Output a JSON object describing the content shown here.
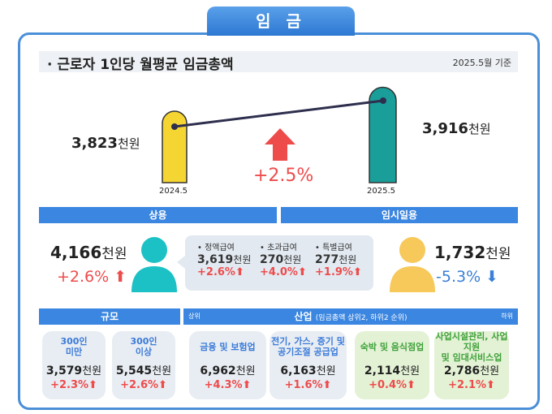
{
  "title": "임 금",
  "header": {
    "title": "· 근로자 1인당 월평균 임금총액",
    "date": "2025.5월 기준"
  },
  "comparison": {
    "prev": {
      "value": "3,823",
      "unit": "천원",
      "label": "2024.5"
    },
    "curr": {
      "value": "3,916",
      "unit": "천원",
      "label": "2025.5"
    },
    "change": "+2.5%"
  },
  "regular": {
    "label": "상용",
    "value": "4,166",
    "unit": "천원",
    "change": "+2.6%",
    "breakdown": [
      {
        "label": "• 정액급여",
        "value": "3,619",
        "unit": "천원",
        "change": "+2.6%"
      },
      {
        "label": "• 초과급여",
        "value": "270",
        "unit": "천원",
        "change": "+4.0%"
      },
      {
        "label": "• 특별급여",
        "value": "277",
        "unit": "천원",
        "change": "+1.9%"
      }
    ]
  },
  "temporary": {
    "label": "임시일용",
    "value": "1,732",
    "unit": "천원",
    "change": "-5.3%"
  },
  "size": {
    "label": "규모",
    "items": [
      {
        "name": "300인\n미만",
        "value": "3,579",
        "unit": "천원",
        "change": "+2.3%"
      },
      {
        "name": "300인\n이상",
        "value": "5,545",
        "unit": "천원",
        "change": "+2.6%"
      }
    ]
  },
  "industry": {
    "label": "산업",
    "note": "(임금총액 상위2, 하위2 순위)",
    "top": "상위",
    "bottom": "하위",
    "items": [
      {
        "name": "금융 및 보험업",
        "value": "6,962",
        "unit": "천원",
        "change": "+4.3%"
      },
      {
        "name": "전기, 가스, 증기 및\n공기조절 공급업",
        "value": "6,163",
        "unit": "천원",
        "change": "+1.6%"
      },
      {
        "name": "숙박 및 음식점업",
        "value": "2,114",
        "unit": "천원",
        "change": "+0.4%"
      },
      {
        "name": "사업시설관리, 사업지원\n및 임대서비스업",
        "value": "2,786",
        "unit": "천원",
        "change": "+2.1%"
      }
    ]
  },
  "colors": {
    "accent": "#3b86e0",
    "up": "#ee4b4b",
    "down": "#3b7fd6",
    "yellow": "#f5d532",
    "teal": "#1a9e9a"
  }
}
